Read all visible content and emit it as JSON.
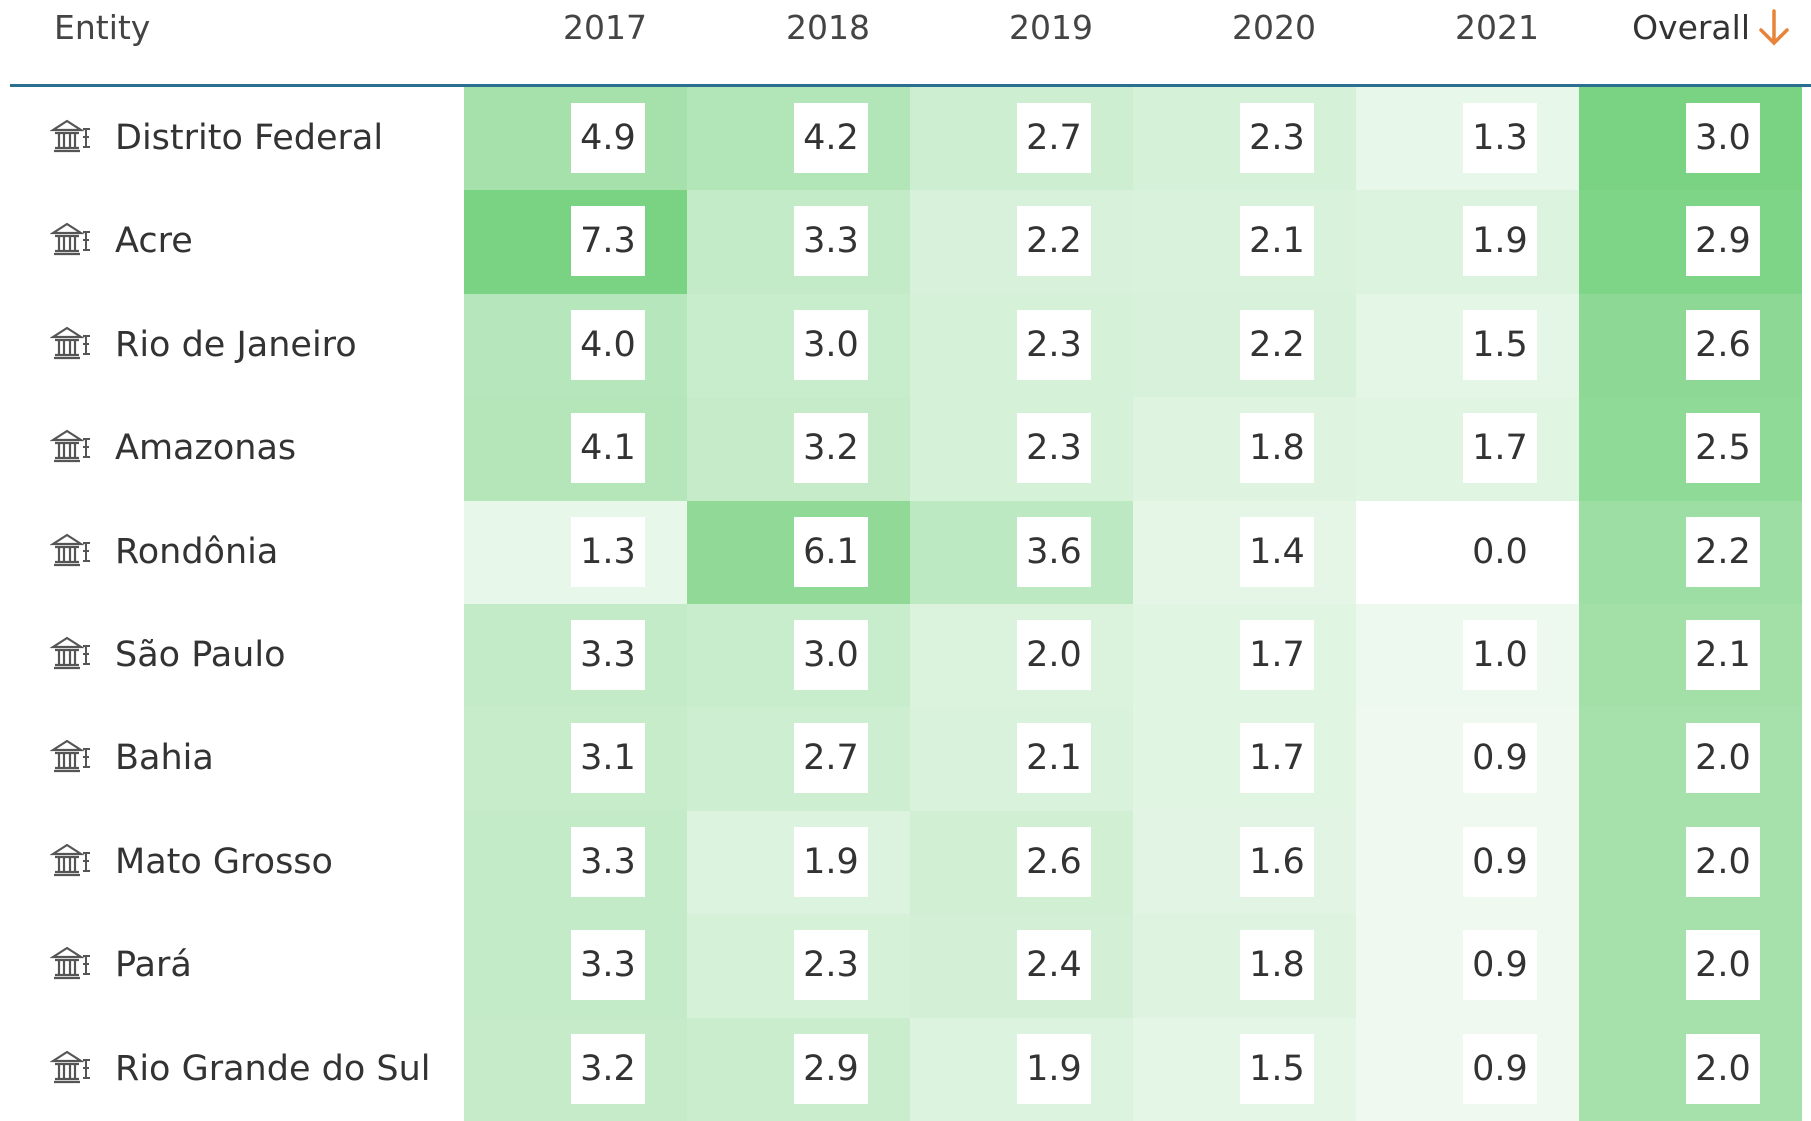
{
  "table": {
    "headers": [
      "Entity",
      "2017",
      "2018",
      "2019",
      "2020",
      "2021",
      "Overall"
    ],
    "rows": [
      [
        "Distrito Federal",
        "4.9",
        "4.2",
        "2.7",
        "2.3",
        "1.3",
        "3.0"
      ],
      [
        "Acre",
        "7.3",
        "3.3",
        "2.2",
        "2.1",
        "1.9",
        "2.9"
      ],
      [
        "Rio de Janeiro",
        "4.0",
        "3.0",
        "2.3",
        "2.2",
        "1.5",
        "2.6"
      ],
      [
        "Amazonas",
        "4.1",
        "3.2",
        "2.3",
        "1.8",
        "1.7",
        "2.5"
      ],
      [
        "Rondônia",
        "1.3",
        "6.1",
        "3.6",
        "1.4",
        "0.0",
        "2.2"
      ],
      [
        "São Paulo",
        "3.3",
        "3.0",
        "2.0",
        "1.7",
        "1.0",
        "2.1"
      ],
      [
        "Bahia",
        "3.1",
        "2.7",
        "2.1",
        "1.7",
        "0.9",
        "2.0"
      ],
      [
        "Mato Grosso",
        "3.3",
        "1.9",
        "2.6",
        "1.6",
        "0.9",
        "2.0"
      ],
      [
        "Pará",
        "3.3",
        "2.3",
        "2.4",
        "1.8",
        "0.9",
        "2.0"
      ],
      [
        "Rio Grande do Sul",
        "3.2",
        "2.9",
        "1.9",
        "1.5",
        "0.9",
        "2.0"
      ]
    ]
  }
}
